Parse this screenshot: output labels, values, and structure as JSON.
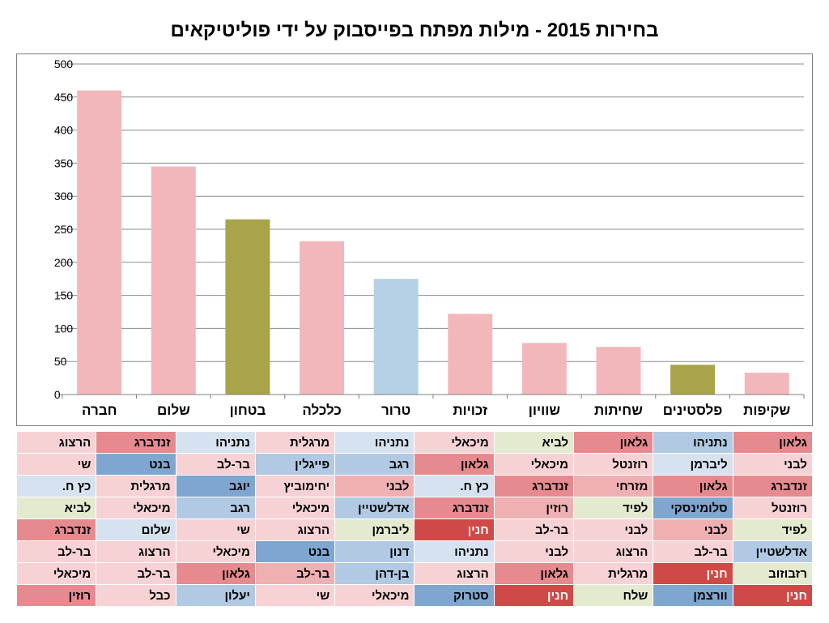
{
  "title": "בחירות 2015 - מילות מפתח בפייסבוק על ידי פוליטיקאים",
  "title_fontsize": 24,
  "chart": {
    "type": "bar",
    "ylim": [
      0,
      500
    ],
    "ytick_step": 50,
    "axis_color": "#7f7f7f",
    "grid_color": "#8c8c8c",
    "tick_label_fontsize": 14,
    "category_label_fontsize": 17,
    "category_label_weight": 700,
    "bar_width_ratio": 0.6,
    "background_color": "#ffffff",
    "categories": [
      "חברה",
      "שלום",
      "בטחון",
      "כלכלה",
      "טרור",
      "זכויות",
      "שוויון",
      "שחיתות",
      "פלסטינים",
      "שקיפות"
    ],
    "values": [
      460,
      345,
      265,
      232,
      175,
      122,
      78,
      72,
      45,
      33
    ],
    "bar_colors": [
      "#f2b7bb",
      "#f2b7bb",
      "#a8a44a",
      "#f2b7bb",
      "#b6d0e6",
      "#f2b7bb",
      "#f2b7bb",
      "#f2b7bb",
      "#a8a44a",
      "#f2b7bb"
    ]
  },
  "table": {
    "cell_fontsize": 15,
    "cell_weight": 600,
    "border_color": "#ffffff",
    "palette": {
      "pink_lt": "#f6d2d4",
      "pink_md": "#efb0b3",
      "pink_dk": "#e68a8f",
      "red_dk": "#cf4a46",
      "blue_lt": "#d6e2ef",
      "blue_md": "#b1c9e2",
      "blue_dk": "#7ea6cf",
      "green_lt": "#e4ead0",
      "gray": "#eeeeee"
    },
    "rows": [
      [
        [
          "הרצוג",
          "pink_lt"
        ],
        [
          "זנדברג",
          "pink_dk"
        ],
        [
          "נתניהו",
          "blue_lt"
        ],
        [
          "מרגלית",
          "pink_lt"
        ],
        [
          "נתניהו",
          "blue_lt"
        ],
        [
          "מיכאלי",
          "pink_lt"
        ],
        [
          "לביא",
          "green_lt"
        ],
        [
          "גלאון",
          "pink_dk"
        ],
        [
          "נתניהו",
          "blue_md"
        ],
        [
          "גלאון",
          "pink_dk"
        ]
      ],
      [
        [
          "שי",
          "pink_lt"
        ],
        [
          "בנט",
          "blue_dk"
        ],
        [
          "בר-לב",
          "pink_lt"
        ],
        [
          "פייגלין",
          "blue_md"
        ],
        [
          "רגב",
          "blue_md"
        ],
        [
          "גלאון",
          "pink_dk"
        ],
        [
          "מיכאלי",
          "pink_lt"
        ],
        [
          "רוזנטל",
          "pink_lt"
        ],
        [
          "ליברמן",
          "blue_lt"
        ],
        [
          "לבני",
          "pink_lt"
        ]
      ],
      [
        [
          "כץ ח.",
          "blue_lt"
        ],
        [
          "מרגלית",
          "pink_lt"
        ],
        [
          "יוגב",
          "blue_dk"
        ],
        [
          "יחימוביץ",
          "pink_lt"
        ],
        [
          "לבני",
          "pink_md"
        ],
        [
          "כץ ח.",
          "blue_lt"
        ],
        [
          "זנדברג",
          "pink_dk"
        ],
        [
          "מזרחי",
          "pink_md"
        ],
        [
          "גלאון",
          "pink_dk"
        ],
        [
          "זנדברג",
          "pink_dk"
        ]
      ],
      [
        [
          "לביא",
          "green_lt"
        ],
        [
          "מיכאלי",
          "pink_lt"
        ],
        [
          "רגב",
          "blue_md"
        ],
        [
          "מיכאלי",
          "pink_lt"
        ],
        [
          "אדלשטיין",
          "blue_md"
        ],
        [
          "זנדברג",
          "pink_dk"
        ],
        [
          "רוזין",
          "pink_md"
        ],
        [
          "לפיד",
          "green_lt"
        ],
        [
          "סלומינסקי",
          "blue_dk"
        ],
        [
          "רוזנטל",
          "pink_lt"
        ]
      ],
      [
        [
          "זנדברג",
          "pink_dk"
        ],
        [
          "שלום",
          "blue_lt"
        ],
        [
          "שי",
          "pink_lt"
        ],
        [
          "הרצוג",
          "pink_lt"
        ],
        [
          "ליברמן",
          "green_lt"
        ],
        [
          "חנין",
          "red_dk"
        ],
        [
          "בר-לב",
          "pink_lt"
        ],
        [
          "לבני",
          "pink_lt"
        ],
        [
          "לבני",
          "pink_md"
        ],
        [
          "לפיד",
          "green_lt"
        ]
      ],
      [
        [
          "בר-לב",
          "pink_lt"
        ],
        [
          "הרצוג",
          "pink_lt"
        ],
        [
          "מיכאלי",
          "pink_lt"
        ],
        [
          "בנט",
          "blue_dk"
        ],
        [
          "דנון",
          "blue_md"
        ],
        [
          "נתניהו",
          "blue_lt"
        ],
        [
          "לבני",
          "pink_lt"
        ],
        [
          "הרצוג",
          "pink_lt"
        ],
        [
          "בר-לב",
          "pink_lt"
        ],
        [
          "אדלשטיין",
          "blue_md"
        ]
      ],
      [
        [
          "מיכאלי",
          "pink_lt"
        ],
        [
          "בר-לב",
          "pink_lt"
        ],
        [
          "גלאון",
          "pink_dk"
        ],
        [
          "בר-לב",
          "pink_md"
        ],
        [
          "בן-דהן",
          "blue_md"
        ],
        [
          "הרצוג",
          "pink_lt"
        ],
        [
          "גלאון",
          "pink_dk"
        ],
        [
          "מרגלית",
          "pink_lt"
        ],
        [
          "חנין",
          "red_dk"
        ],
        [
          "רזבוזוב",
          "green_lt"
        ]
      ],
      [
        [
          "רוזין",
          "pink_dk"
        ],
        [
          "כבל",
          "pink_lt"
        ],
        [
          "יעלון",
          "blue_md"
        ],
        [
          "שי",
          "pink_lt"
        ],
        [
          "מיכאלי",
          "pink_lt"
        ],
        [
          "סטרוק",
          "blue_dk"
        ],
        [
          "חנין",
          "red_dk"
        ],
        [
          "שלח",
          "green_lt"
        ],
        [
          "וורצמן",
          "blue_dk"
        ],
        [
          "חנין",
          "red_dk"
        ]
      ]
    ]
  }
}
